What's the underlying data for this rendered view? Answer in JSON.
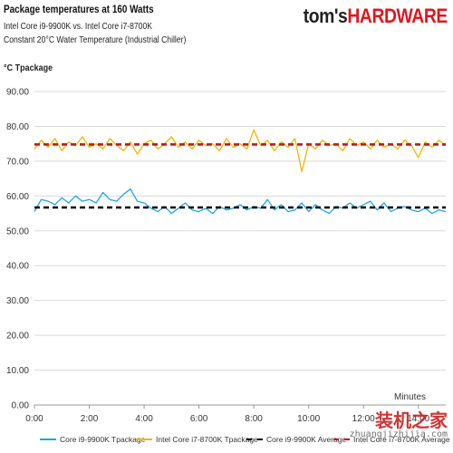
{
  "header": {
    "title": "Package temperatures at 160 Watts",
    "subtitle1": "Intel Core i9-9900K vs. Intel Core i7-8700K",
    "subtitle2": "Constant 20°C Water Temperature (Industrial Chiller)",
    "brand_part1": "tom's",
    "brand_part2": "HARDWARE"
  },
  "watermark": {
    "text": "装机之家",
    "url": "zhuangjizhijia.com"
  },
  "chart_data": {
    "type": "line",
    "title": "Package temperatures at 160 Watts",
    "ylabel": "°C Tpackage",
    "xlabel": "Minutes",
    "ylim": [
      0,
      90
    ],
    "xlim": [
      0,
      15
    ],
    "y_ticks": [
      "0.00",
      "10.00",
      "20.00",
      "30.00",
      "40.00",
      "50.00",
      "60.00",
      "70.00",
      "80.00",
      "90.00"
    ],
    "x_ticks": [
      "0:00",
      "2:00",
      "4:00",
      "6:00",
      "8:00",
      "10:00",
      "12:00",
      "14:00"
    ],
    "x_tick_values": [
      0,
      2,
      4,
      6,
      8,
      10,
      12,
      14
    ],
    "grid": true,
    "legend_position": "bottom",
    "series": [
      {
        "name": "Core i9-9900K Tpackage",
        "color": "#1ea7e1",
        "style": "solid",
        "x": [
          0,
          0.25,
          0.5,
          0.75,
          1.0,
          1.25,
          1.5,
          1.75,
          2.0,
          2.25,
          2.5,
          2.75,
          3.0,
          3.25,
          3.5,
          3.75,
          4.0,
          4.25,
          4.5,
          4.75,
          5.0,
          5.25,
          5.5,
          5.75,
          6.0,
          6.25,
          6.5,
          6.75,
          7.0,
          7.25,
          7.5,
          7.75,
          8.0,
          8.25,
          8.5,
          8.75,
          9.0,
          9.25,
          9.5,
          9.75,
          10.0,
          10.25,
          10.5,
          10.75,
          11.0,
          11.25,
          11.5,
          11.75,
          12.0,
          12.25,
          12.5,
          12.75,
          13.0,
          13.25,
          13.5,
          13.75,
          14.0,
          14.25,
          14.5,
          14.75,
          15.0
        ],
        "values": [
          55.5,
          59.0,
          58.5,
          57.5,
          59.5,
          58.0,
          60.0,
          58.5,
          59.0,
          58.0,
          61.0,
          59.0,
          58.5,
          60.5,
          62.0,
          58.5,
          58.0,
          56.5,
          55.5,
          57.0,
          55.0,
          56.5,
          58.0,
          56.0,
          55.5,
          56.5,
          55.0,
          57.0,
          56.0,
          56.5,
          57.5,
          56.0,
          57.0,
          56.5,
          59.0,
          56.0,
          57.5,
          55.5,
          56.0,
          58.0,
          55.5,
          57.5,
          56.0,
          55.0,
          57.0,
          56.5,
          58.0,
          56.5,
          57.5,
          58.5,
          56.0,
          58.0,
          55.5,
          56.5,
          57.0,
          56.0,
          55.5,
          56.5,
          55.0,
          56.0,
          55.5
        ]
      },
      {
        "name": "Intel Core i7-8700K Tpackage",
        "color": "#f5b400",
        "style": "solid",
        "x": [
          0,
          0.25,
          0.5,
          0.75,
          1.0,
          1.25,
          1.5,
          1.75,
          2.0,
          2.25,
          2.5,
          2.75,
          3.0,
          3.25,
          3.5,
          3.75,
          4.0,
          4.25,
          4.5,
          4.75,
          5.0,
          5.25,
          5.5,
          5.75,
          6.0,
          6.25,
          6.5,
          6.75,
          7.0,
          7.25,
          7.5,
          7.75,
          8.0,
          8.25,
          8.5,
          8.75,
          9.0,
          9.25,
          9.5,
          9.75,
          10.0,
          10.25,
          10.5,
          10.75,
          11.0,
          11.25,
          11.5,
          11.75,
          12.0,
          12.25,
          12.5,
          12.75,
          13.0,
          13.25,
          13.5,
          13.75,
          14.0,
          14.25,
          14.5,
          14.75,
          15.0
        ],
        "values": [
          73.5,
          76.0,
          74.0,
          76.5,
          73.0,
          75.5,
          74.5,
          77.0,
          74.0,
          75.0,
          73.5,
          76.5,
          74.5,
          73.0,
          75.5,
          72.0,
          75.0,
          76.0,
          73.5,
          75.0,
          77.0,
          74.0,
          75.5,
          73.5,
          76.0,
          74.5,
          75.0,
          73.0,
          76.5,
          74.0,
          75.0,
          73.5,
          79.0,
          74.5,
          76.0,
          73.0,
          75.5,
          74.0,
          76.5,
          67.0,
          75.0,
          73.5,
          76.0,
          74.5,
          75.0,
          73.0,
          76.5,
          74.5,
          75.5,
          73.5,
          76.0,
          74.0,
          75.0,
          73.5,
          76.0,
          74.5,
          71.0,
          75.5,
          74.0,
          76.0,
          74.5
        ]
      },
      {
        "name": "Core i9-9900K Average",
        "color": "#000000",
        "style": "dashed",
        "x": [
          0,
          15
        ],
        "values": [
          56.7,
          56.7
        ]
      },
      {
        "name": "Intel Core i7-8700K Average",
        "color": "#c0161b",
        "style": "dashed",
        "x": [
          0,
          15
        ],
        "values": [
          74.8,
          74.8
        ]
      }
    ]
  }
}
